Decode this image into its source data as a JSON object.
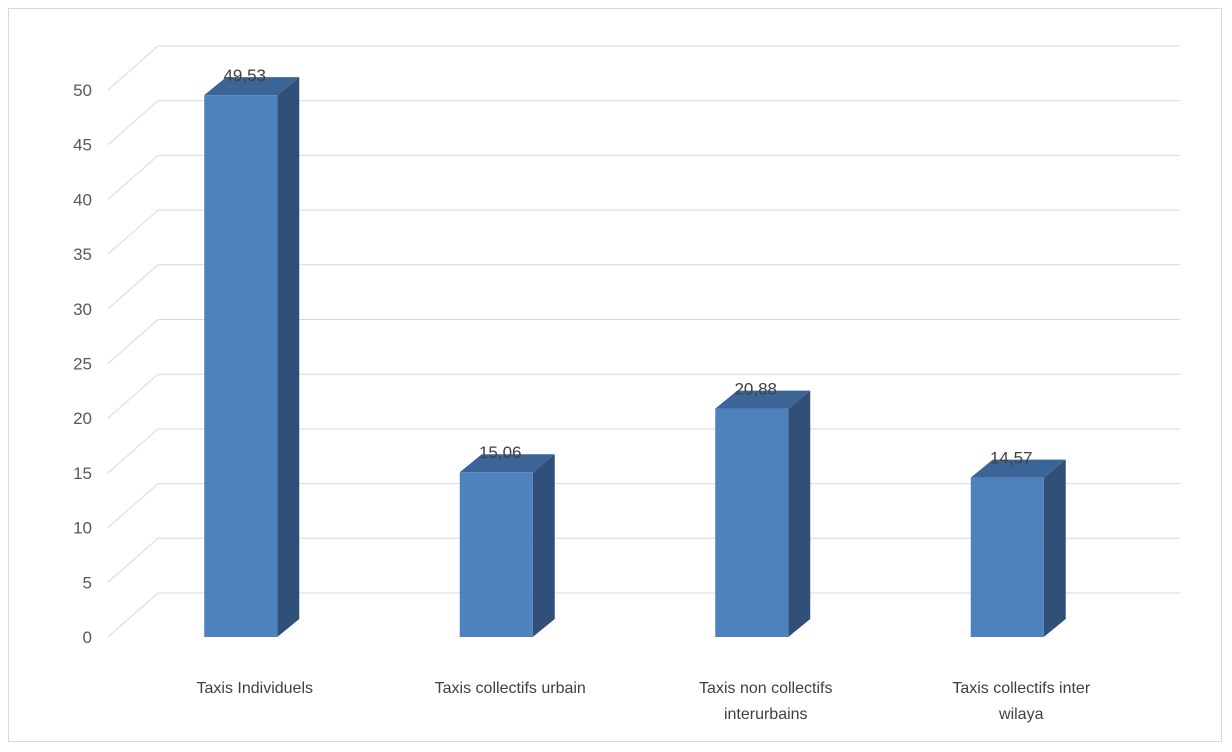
{
  "chart_data": {
    "type": "bar",
    "style": "3d-column",
    "categories": [
      [
        "Taxis Individuels"
      ],
      [
        "Taxis collectifs urbain"
      ],
      [
        "Taxis non collectifs",
        "interurbains"
      ],
      [
        "Taxis collectifs inter",
        "wilaya"
      ]
    ],
    "values": [
      49.53,
      15.06,
      20.88,
      14.57
    ],
    "data_labels": [
      "49,53",
      "15,06",
      "20,88",
      "14,57"
    ],
    "ylim": [
      0,
      50
    ],
    "yticks": [
      0,
      5,
      10,
      15,
      20,
      25,
      30,
      35,
      40,
      45,
      50
    ],
    "grid": true,
    "legend": "none",
    "colors": {
      "front": "#4f81bd",
      "side": "#30507a",
      "top": "#3b6497",
      "grid": "#d9d9d9",
      "axis_text": "#595959"
    }
  }
}
